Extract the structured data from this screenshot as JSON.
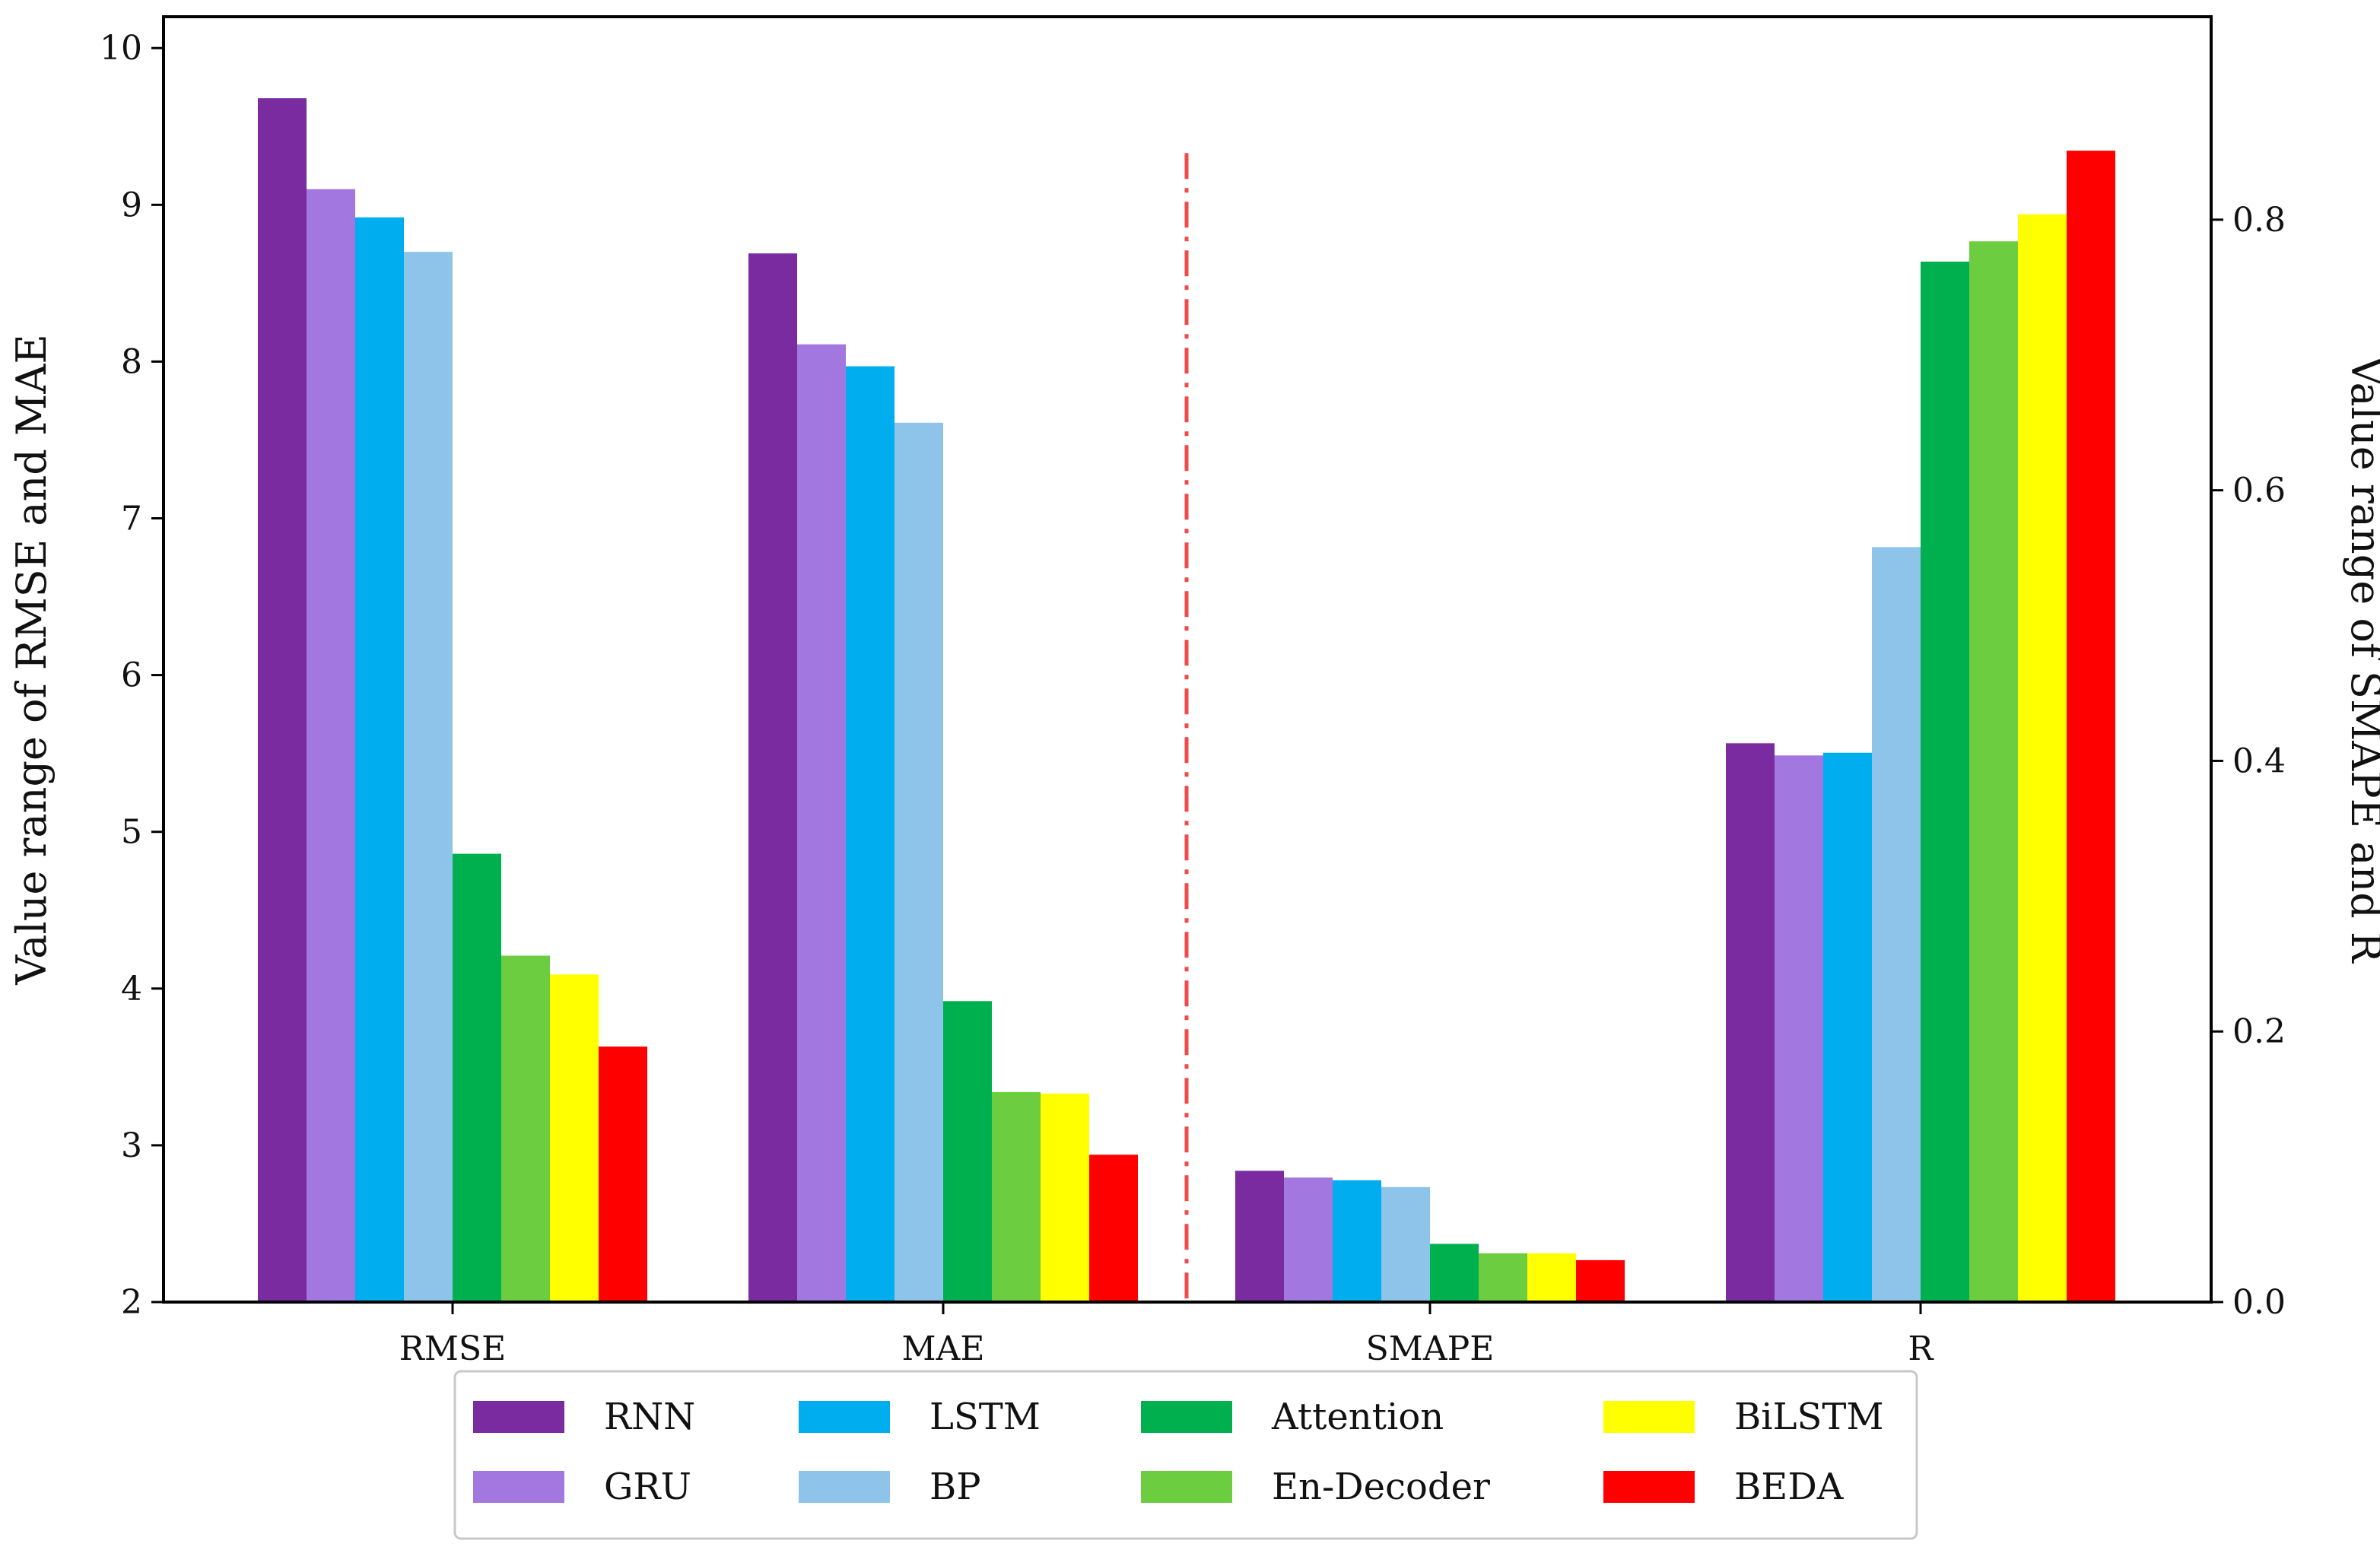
{
  "chart_data": {
    "type": "bar",
    "categories": [
      "RMSE",
      "MAE",
      "SMAPE",
      "R"
    ],
    "left_axis": {
      "label": "Value range of RMSE and MAE",
      "range": [
        2,
        10.2
      ],
      "ticks": [
        2,
        3,
        4,
        5,
        6,
        7,
        8,
        9,
        10
      ],
      "applies_to": [
        "RMSE",
        "MAE"
      ]
    },
    "right_axis": {
      "label": "Value range of SMAPE and R",
      "range": [
        0,
        0.95
      ],
      "ticks": [
        0.0,
        0.2,
        0.4,
        0.6,
        0.8
      ],
      "tick_labels": [
        "0.0",
        "0.2",
        "0.4",
        "0.6",
        "0.8"
      ],
      "applies_to": [
        "SMAPE",
        "R"
      ]
    },
    "series": [
      {
        "name": "RNN",
        "color": "#7b2ba0",
        "values": [
          9.68,
          8.69,
          0.097,
          0.413
        ]
      },
      {
        "name": "GRU",
        "color": "#a277e0",
        "values": [
          9.1,
          8.11,
          0.092,
          0.404
        ]
      },
      {
        "name": "LSTM",
        "color": "#00adef",
        "values": [
          8.92,
          7.97,
          0.09,
          0.406
        ]
      },
      {
        "name": "BP",
        "color": "#8ec4ea",
        "values": [
          8.7,
          7.61,
          0.085,
          0.558
        ]
      },
      {
        "name": "Attention",
        "color": "#00b04f",
        "values": [
          4.86,
          3.92,
          0.043,
          0.769
        ]
      },
      {
        "name": "En-Decoder",
        "color": "#6ccd40",
        "values": [
          4.21,
          3.34,
          0.036,
          0.784
        ]
      },
      {
        "name": "BiLSTM",
        "color": "#ffff00",
        "values": [
          4.09,
          3.33,
          0.036,
          0.804
        ]
      },
      {
        "name": "BEDA",
        "color": "#ff0000",
        "values": [
          3.63,
          2.94,
          0.031,
          0.851
        ]
      }
    ],
    "divider": {
      "style": "dash-dot",
      "color": "#f04a4a",
      "between": [
        "MAE",
        "SMAPE"
      ]
    },
    "legend": {
      "position": "bottom-center",
      "columns": 4
    }
  }
}
